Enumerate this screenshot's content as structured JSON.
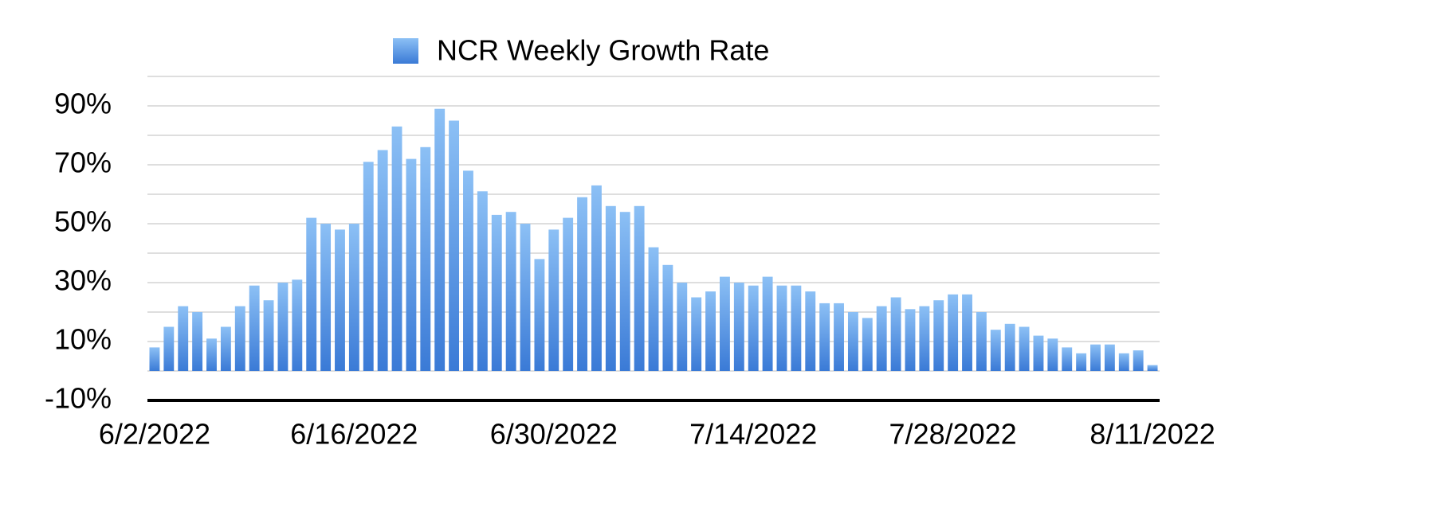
{
  "chart_data": {
    "type": "bar",
    "categories": [
      "6/2/2022",
      null,
      null,
      null,
      null,
      null,
      null,
      null,
      null,
      null,
      null,
      null,
      null,
      null,
      "6/16/2022",
      null,
      null,
      null,
      null,
      null,
      null,
      null,
      null,
      null,
      null,
      null,
      null,
      null,
      "6/30/2022",
      null,
      null,
      null,
      null,
      null,
      null,
      null,
      null,
      null,
      null,
      null,
      null,
      null,
      "7/14/2022",
      null,
      null,
      null,
      null,
      null,
      null,
      null,
      null,
      null,
      null,
      null,
      null,
      null,
      "7/28/2022",
      null,
      null,
      null,
      null,
      null,
      null,
      null,
      null,
      null,
      null,
      null,
      null,
      null,
      "8/11/2022"
    ],
    "series": [
      {
        "name": "NCR Weekly Growth Rate",
        "color": "#3a7ad6",
        "values": [
          8,
          15,
          22,
          20,
          11,
          15,
          22,
          29,
          24,
          30,
          31,
          52,
          50,
          48,
          50,
          71,
          75,
          83,
          72,
          76,
          89,
          85,
          68,
          61,
          53,
          54,
          50,
          38,
          48,
          52,
          59,
          63,
          56,
          54,
          56,
          42,
          36,
          30,
          25,
          27,
          32,
          30,
          29,
          32,
          29,
          29,
          27,
          23,
          23,
          20,
          18,
          22,
          25,
          21,
          22,
          24,
          26,
          26,
          20,
          14,
          16,
          15,
          12,
          11,
          8,
          6,
          9,
          9,
          6,
          7,
          2
        ]
      }
    ],
    "ylim": [
      -10,
      100
    ],
    "yticks": [
      {
        "value": -10,
        "label": "-10%"
      },
      {
        "value": 10,
        "label": "10%"
      },
      {
        "value": 30,
        "label": "30%"
      },
      {
        "value": 50,
        "label": "50%"
      },
      {
        "value": 70,
        "label": "70%"
      },
      {
        "value": 90,
        "label": "90%"
      }
    ],
    "minor_yticks": [
      0,
      20,
      40,
      60,
      80,
      100
    ],
    "grid": true
  }
}
